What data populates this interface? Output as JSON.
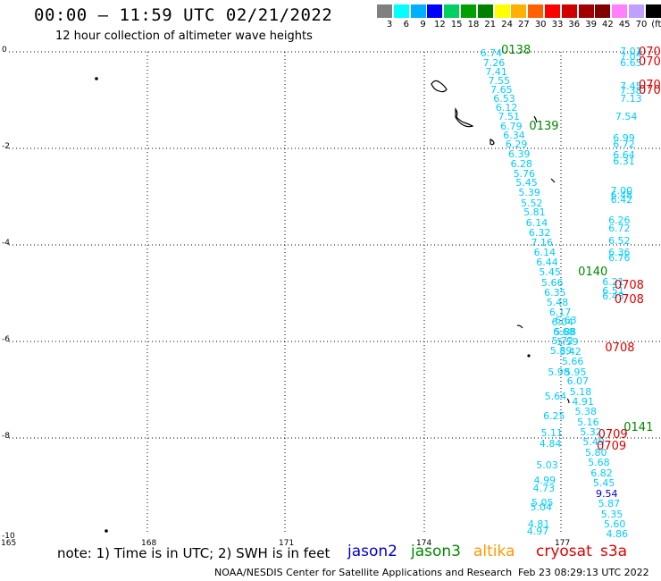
{
  "header": {
    "title": "00:00 — 11:59 UTC 02/21/2022",
    "subtitle": "12 hour collection of altimeter wave heights"
  },
  "colorbar": {
    "colors": [
      "#808080",
      "#00ffff",
      "#00b0ff",
      "#0000ff",
      "#00d060",
      "#00a000",
      "#008000",
      "#ffff00",
      "#ffb000",
      "#ff6000",
      "#ff0000",
      "#d00000",
      "#a00000",
      "#800000",
      "#ff80ff",
      "#c0a0ff",
      "#000000"
    ],
    "labels": [
      "3",
      "6",
      "9",
      "12",
      "15",
      "18",
      "21",
      "24",
      "27",
      "30",
      "33",
      "36",
      "39",
      "42",
      "45",
      "70",
      "(ft)"
    ]
  },
  "axes": {
    "y_labels": [
      "0",
      "-2",
      "-4",
      "-6",
      "-8",
      "-10"
    ],
    "x_labels": [
      "165",
      "168",
      "171",
      "174",
      "177"
    ]
  },
  "map": {
    "extent": {
      "lon": [
        165,
        179
      ],
      "lat": [
        -10,
        0
      ]
    },
    "wave_color": "#00ccff",
    "track_a": [
      {
        "lon": 175.35,
        "lat": -0.04,
        "v": "6.74"
      },
      {
        "lon": 175.41,
        "lat": -0.24,
        "v": "7.26"
      },
      {
        "lon": 175.46,
        "lat": -0.42,
        "v": "7.41"
      },
      {
        "lon": 175.52,
        "lat": -0.61,
        "v": "7.55"
      },
      {
        "lon": 175.57,
        "lat": -0.79,
        "v": "7.65"
      },
      {
        "lon": 175.63,
        "lat": -0.98,
        "v": "6.53"
      },
      {
        "lon": 175.68,
        "lat": -1.17,
        "v": "6.12"
      },
      {
        "lon": 175.73,
        "lat": -1.35,
        "v": "7.51"
      },
      {
        "lon": 175.78,
        "lat": -1.55,
        "v": "6.79"
      },
      {
        "lon": 175.84,
        "lat": -1.74,
        "v": "6.34"
      },
      {
        "lon": 175.89,
        "lat": -1.93,
        "v": "6.29"
      },
      {
        "lon": 175.95,
        "lat": -2.13,
        "v": "6.39"
      },
      {
        "lon": 176.0,
        "lat": -2.33,
        "v": "6.28"
      },
      {
        "lon": 176.06,
        "lat": -2.53,
        "v": "5.76"
      },
      {
        "lon": 176.11,
        "lat": -2.73,
        "v": "5.45"
      },
      {
        "lon": 176.17,
        "lat": -2.93,
        "v": "5.39"
      },
      {
        "lon": 176.22,
        "lat": -3.14,
        "v": "5.52"
      },
      {
        "lon": 176.28,
        "lat": -3.34,
        "v": "5.81"
      },
      {
        "lon": 176.33,
        "lat": -3.55,
        "v": "6.14"
      },
      {
        "lon": 176.39,
        "lat": -3.75,
        "v": "6.32"
      },
      {
        "lon": 176.44,
        "lat": -3.96,
        "v": "7.16"
      },
      {
        "lon": 176.5,
        "lat": -4.17,
        "v": "6.14"
      },
      {
        "lon": 176.55,
        "lat": -4.37,
        "v": "6.44"
      },
      {
        "lon": 176.61,
        "lat": -4.58,
        "v": "5.45"
      },
      {
        "lon": 176.66,
        "lat": -4.79,
        "v": "5.66"
      },
      {
        "lon": 176.72,
        "lat": -5.0,
        "v": "6.35"
      },
      {
        "lon": 176.77,
        "lat": -5.2,
        "v": "5.48"
      },
      {
        "lon": 176.83,
        "lat": -5.41,
        "v": "6.17"
      },
      {
        "lon": 176.88,
        "lat": -5.61,
        "v": "6.04"
      },
      {
        "lon": 176.94,
        "lat": -5.82,
        "v": "5.88"
      },
      {
        "lon": 176.99,
        "lat": -6.02,
        "v": "5.59"
      },
      {
        "lon": 177.05,
        "lat": -6.23,
        "v": "5.42"
      },
      {
        "lon": 177.1,
        "lat": -6.43,
        "v": "5.66"
      },
      {
        "lon": 177.16,
        "lat": -6.64,
        "v": "5.95"
      },
      {
        "lon": 177.21,
        "lat": -6.84,
        "v": "6.07"
      },
      {
        "lon": 177.27,
        "lat": -7.05,
        "v": "5.18"
      },
      {
        "lon": 177.32,
        "lat": -7.26,
        "v": "4.91"
      },
      {
        "lon": 177.38,
        "lat": -7.47,
        "v": "5.38"
      },
      {
        "lon": 177.43,
        "lat": -7.68,
        "v": "5.16"
      },
      {
        "lon": 177.49,
        "lat": -7.89,
        "v": "5.32"
      },
      {
        "lon": 177.55,
        "lat": -8.1,
        "v": "5.49"
      },
      {
        "lon": 177.6,
        "lat": -8.31,
        "v": "5.80"
      },
      {
        "lon": 177.66,
        "lat": -8.52,
        "v": "5.68"
      },
      {
        "lon": 177.72,
        "lat": -8.74,
        "v": "6.82"
      },
      {
        "lon": 177.77,
        "lat": -8.95,
        "v": "5.45"
      },
      {
        "lon": 177.83,
        "lat": -9.16,
        "v": "9.54",
        "c": "#0000cc"
      },
      {
        "lon": 177.88,
        "lat": -9.37,
        "v": "5.87"
      },
      {
        "lon": 177.94,
        "lat": -9.59,
        "v": "5.35"
      },
      {
        "lon": 178.0,
        "lat": -9.8,
        "v": "5.60"
      },
      {
        "lon": 178.05,
        "lat": -10.0,
        "v": "4.86"
      }
    ],
    "track_b": [
      {
        "lon": 176.95,
        "lat": -5.58,
        "v": "6.63"
      },
      {
        "lon": 176.91,
        "lat": -5.81,
        "v": "6.68"
      },
      {
        "lon": 176.88,
        "lat": -6.0,
        "v": "5.72"
      },
      {
        "lon": 176.85,
        "lat": -6.2,
        "v": "5.89"
      },
      {
        "lon": 176.8,
        "lat": -6.65,
        "v": "5.98"
      },
      {
        "lon": 176.73,
        "lat": -7.15,
        "v": "5.64"
      },
      {
        "lon": 176.7,
        "lat": -7.55,
        "v": "6.25"
      },
      {
        "lon": 176.65,
        "lat": -7.9,
        "v": "5.11"
      },
      {
        "lon": 176.62,
        "lat": -8.13,
        "v": "4.84"
      },
      {
        "lon": 176.55,
        "lat": -8.58,
        "v": "5.03"
      },
      {
        "lon": 176.5,
        "lat": -8.88,
        "v": "4.99"
      },
      {
        "lon": 176.48,
        "lat": -9.05,
        "v": "4.73"
      },
      {
        "lon": 176.45,
        "lat": -9.35,
        "v": "5.05"
      },
      {
        "lon": 176.42,
        "lat": -9.45,
        "v": "5.04"
      },
      {
        "lon": 176.37,
        "lat": -9.8,
        "v": "4.81"
      },
      {
        "lon": 176.35,
        "lat": -9.94,
        "v": "4.97"
      }
    ],
    "track_c": [
      {
        "lon": 178.35,
        "lat": 0.0,
        "v": "7.01"
      },
      {
        "lon": 178.35,
        "lat": -0.12,
        "v": "7.05"
      },
      {
        "lon": 178.35,
        "lat": -0.24,
        "v": "6.65"
      },
      {
        "lon": 178.35,
        "lat": -0.72,
        "v": "7.45"
      },
      {
        "lon": 178.35,
        "lat": -0.82,
        "v": "7.38"
      },
      {
        "lon": 178.35,
        "lat": -0.98,
        "v": "7.13"
      },
      {
        "lon": 178.25,
        "lat": -1.35,
        "v": "7.54"
      },
      {
        "lon": 178.2,
        "lat": -1.8,
        "v": "6.99"
      },
      {
        "lon": 178.2,
        "lat": -1.92,
        "v": "6.72"
      },
      {
        "lon": 178.2,
        "lat": -2.15,
        "v": "6.64"
      },
      {
        "lon": 178.2,
        "lat": -2.27,
        "v": "6.31"
      },
      {
        "lon": 178.15,
        "lat": -2.88,
        "v": "7.00"
      },
      {
        "lon": 178.15,
        "lat": -2.98,
        "v": "6.48"
      },
      {
        "lon": 178.15,
        "lat": -3.07,
        "v": "6.42"
      },
      {
        "lon": 178.1,
        "lat": -3.5,
        "v": "6.26"
      },
      {
        "lon": 178.1,
        "lat": -3.66,
        "v": "6.72"
      },
      {
        "lon": 178.1,
        "lat": -3.92,
        "v": "6.52"
      },
      {
        "lon": 178.1,
        "lat": -4.17,
        "v": "6.36"
      },
      {
        "lon": 178.1,
        "lat": -4.28,
        "v": "6.76"
      },
      {
        "lon": 177.97,
        "lat": -4.77,
        "v": "6.21"
      },
      {
        "lon": 177.97,
        "lat": -4.97,
        "v": "6.51"
      },
      {
        "lon": 177.97,
        "lat": -5.07,
        "v": "6.43"
      }
    ],
    "pass_labels": [
      {
        "lon": 175.8,
        "lat": 0.02,
        "text": "0138",
        "color": "#008800"
      },
      {
        "lon": 176.4,
        "lat": -1.56,
        "text": "0139",
        "color": "#008800"
      },
      {
        "lon": 177.45,
        "lat": -4.58,
        "text": "0140",
        "color": "#008800"
      },
      {
        "lon": 178.43,
        "lat": -7.8,
        "text": "0141",
        "color": "#008800"
      },
      {
        "lon": 178.75,
        "lat": -0.02,
        "text": "070",
        "color": "#dd0000"
      },
      {
        "lon": 178.75,
        "lat": -0.22,
        "text": "070",
        "color": "#dd0000"
      },
      {
        "lon": 178.75,
        "lat": -0.7,
        "text": "070",
        "color": "#dd0000"
      },
      {
        "lon": 178.75,
        "lat": -0.82,
        "text": "070",
        "color": "#dd0000"
      },
      {
        "lon": 178.23,
        "lat": -4.85,
        "text": "0708",
        "color": "#dd0000"
      },
      {
        "lon": 178.23,
        "lat": -5.15,
        "text": "0708",
        "color": "#dd0000"
      },
      {
        "lon": 178.03,
        "lat": -6.15,
        "text": "0708",
        "color": "#dd0000"
      },
      {
        "lon": 177.88,
        "lat": -7.95,
        "text": "0709",
        "color": "#dd0000"
      },
      {
        "lon": 177.85,
        "lat": -8.18,
        "text": "0709",
        "color": "#dd0000"
      }
    ]
  },
  "note": "note:  1) Time is in UTC;  2) SWH is in feet",
  "legend": [
    {
      "name": "jason2",
      "color": "#0000cc"
    },
    {
      "name": "jason3",
      "color": "#008800"
    },
    {
      "name": "altika",
      "color": "#ff9900"
    },
    {
      "name": "cryosat",
      "color": "#dd0000"
    },
    {
      "name": "s3a",
      "color": "#dd0000"
    }
  ],
  "footer": {
    "credit": "NOAA/NESDIS Center for Satellite Applications and Research",
    "timestamp": "Feb 23 08:29:13 UTC 2022"
  }
}
